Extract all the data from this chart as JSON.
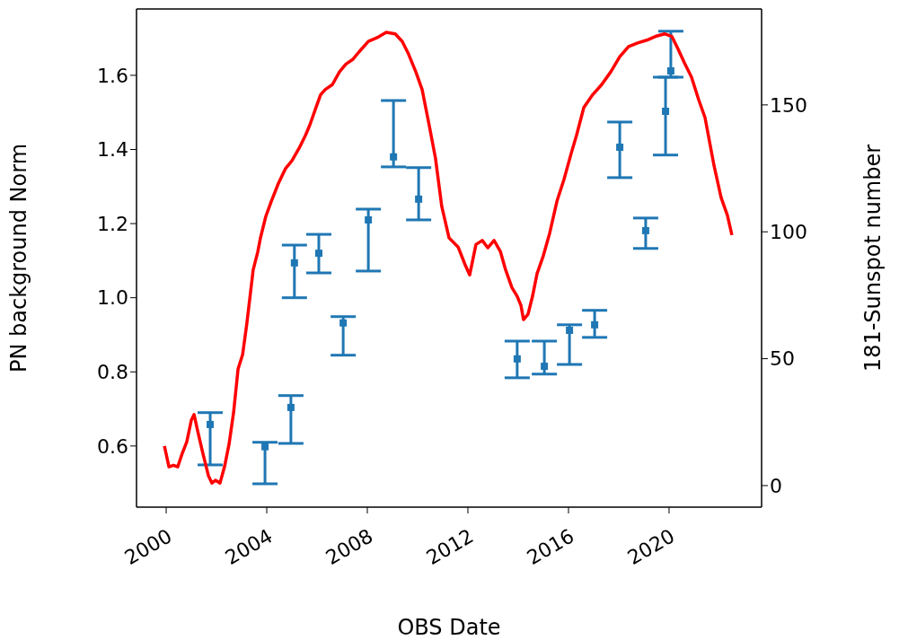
{
  "chart_data": {
    "type": "scatter",
    "xlabel": "OBS Date",
    "ylabel": "PN background Norm",
    "y2label": "181-Sunspot number",
    "xlim": [
      1998.82,
      2023.68
    ],
    "xticks": [
      2000,
      2004,
      2008,
      2012,
      2016,
      2020
    ],
    "ylim": [
      0.435,
      1.779
    ],
    "yticks": [
      0.6,
      0.8,
      {
        "value": 1,
        "label": "1.0"
      },
      1.2,
      1.4,
      1.6
    ],
    "y2lim": [
      -8.5,
      187.8
    ],
    "y2ticks": [
      0,
      50,
      100,
      150
    ],
    "grid": false,
    "legend": false,
    "marker": "square",
    "series": [
      {
        "color": "#1f77b4",
        "x": [
          2001.75,
          2003.93,
          2004.96,
          2005.1,
          2006.07,
          2007.04,
          2008.04,
          2009.04,
          2010.04,
          2013.96,
          2015.04,
          2016.04,
          2017.04,
          2018.04,
          2019.07,
          2019.86,
          2020.07
        ],
        "values": [
          0.658,
          0.598,
          0.704,
          1.094,
          1.12,
          0.932,
          1.21,
          1.38,
          1.266,
          0.835,
          0.815,
          0.912,
          0.927,
          1.406,
          1.181,
          1.503,
          1.612
        ],
        "errors": [
          [
            0.549,
            0.69
          ],
          [
            0.498,
            0.61
          ],
          [
            0.607,
            0.736
          ],
          [
            1.0,
            1.142
          ],
          [
            1.067,
            1.171
          ],
          [
            0.845,
            0.949
          ],
          [
            1.072,
            1.239
          ],
          [
            1.353,
            1.532
          ],
          [
            1.21,
            1.351
          ],
          [
            0.784,
            0.883
          ],
          [
            0.794,
            0.883
          ],
          [
            0.82,
            0.927
          ],
          [
            0.893,
            0.966
          ],
          [
            1.324,
            1.474
          ],
          [
            1.133,
            1.215
          ],
          [
            1.385,
            1.595
          ],
          [
            1.595,
            1.719
          ]
        ]
      },
      {
        "type": "line",
        "axis": "y2",
        "color": "#ff0000",
        "marker": "none",
        "line_style": "solid",
        "x": [
          1999.93,
          2000.11,
          2000.29,
          2000.46,
          2000.64,
          2000.82,
          2001.0,
          2001.11,
          2001.25,
          2001.46,
          2001.68,
          2001.82,
          2001.96,
          2002.14,
          2002.32,
          2002.5,
          2002.68,
          2002.86,
          2003.04,
          2003.21,
          2003.46,
          2003.64,
          2003.75,
          2003.96,
          2004.18,
          2004.46,
          2004.75,
          2005.0,
          2005.29,
          2005.54,
          2005.71,
          2005.96,
          2006.14,
          2006.32,
          2006.61,
          2006.89,
          2007.14,
          2007.43,
          2007.68,
          2008.04,
          2008.39,
          2008.75,
          2009.11,
          2009.39,
          2009.64,
          2009.93,
          2010.18,
          2010.46,
          2010.71,
          2010.96,
          2011.25,
          2011.61,
          2011.89,
          2012.07,
          2012.32,
          2012.57,
          2012.79,
          2013.04,
          2013.29,
          2013.5,
          2013.75,
          2013.96,
          2014.11,
          2014.21,
          2014.39,
          2014.57,
          2014.75,
          2015.0,
          2015.25,
          2015.54,
          2015.82,
          2016.11,
          2016.32,
          2016.61,
          2016.96,
          2017.32,
          2017.68,
          2018.04,
          2018.39,
          2018.75,
          2019.11,
          2019.46,
          2019.82,
          2020.11,
          2020.36,
          2020.61,
          2020.89,
          2021.18,
          2021.43,
          2021.79,
          2022.07,
          2022.32,
          2022.5
        ],
        "values": [
          15.6,
          7.4,
          8,
          7.4,
          12.7,
          17.3,
          25.8,
          28,
          21.6,
          12.7,
          3.9,
          1,
          2.1,
          1,
          7.4,
          16.3,
          28.7,
          46,
          51.6,
          64,
          85,
          92,
          97.6,
          106,
          112,
          119,
          125,
          128,
          133,
          138,
          142,
          149,
          154,
          156,
          158,
          163,
          166,
          168,
          171,
          175,
          176.5,
          178.6,
          178,
          175,
          170,
          163,
          156,
          142,
          129,
          110,
          97.6,
          94,
          87,
          83,
          95,
          96.6,
          93.7,
          96.6,
          92.3,
          85,
          78,
          74.6,
          71,
          65.4,
          67.5,
          74.6,
          83.5,
          90.6,
          99.4,
          112,
          120.6,
          131,
          138,
          149,
          154,
          158,
          163,
          169,
          173,
          174.4,
          175.5,
          177,
          178,
          177,
          172,
          166.6,
          161,
          152,
          145,
          126,
          113.5,
          106.5,
          98.7
        ]
      }
    ]
  }
}
